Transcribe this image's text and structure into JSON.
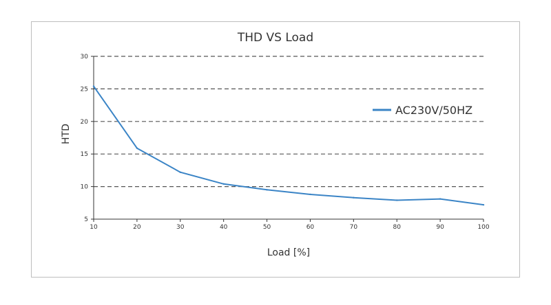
{
  "chart_data": {
    "type": "line",
    "title": "THD VS Load",
    "xlabel": "Load [%]",
    "ylabel": "HTD",
    "xlim": [
      10,
      100
    ],
    "ylim": [
      5,
      30
    ],
    "x_ticks": [
      "10",
      "20",
      "30",
      "40",
      "50",
      "60",
      "70",
      "80",
      "90",
      "100"
    ],
    "y_ticks": [
      "5",
      "10",
      "15",
      "20",
      "25",
      "30"
    ],
    "grid": "horizontal-dashed",
    "legend": "right",
    "series": [
      {
        "name": "AC230V/50HZ",
        "color": "#3a84c6",
        "x": [
          10,
          20,
          30,
          40,
          50,
          60,
          70,
          80,
          90,
          100
        ],
        "y": [
          25.4,
          15.9,
          12.2,
          10.4,
          9.5,
          8.8,
          8.3,
          7.9,
          8.1,
          7.2
        ]
      }
    ]
  }
}
